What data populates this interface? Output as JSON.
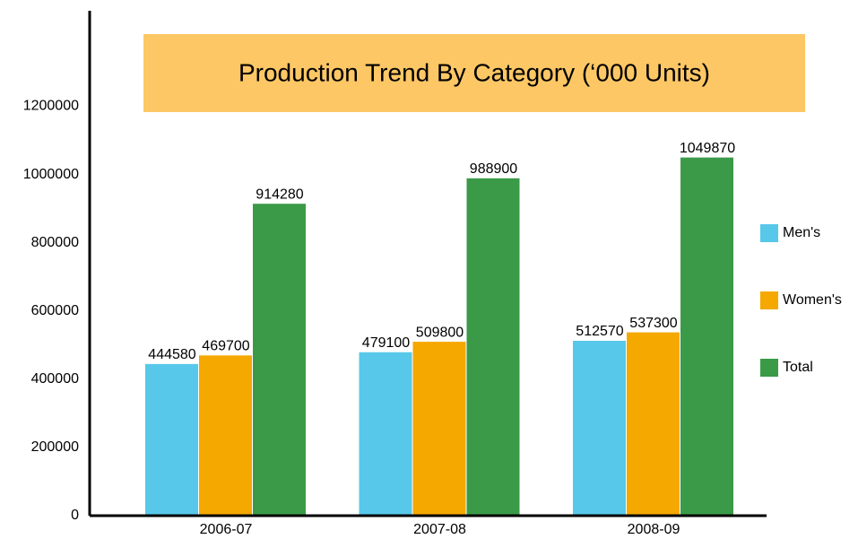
{
  "chart_data": {
    "type": "bar",
    "title": "Production Trend By Category (‘000 Units)",
    "categories": [
      "2006-07",
      "2007-08",
      "2008-09"
    ],
    "series": [
      {
        "name": "Men's",
        "color": "#57c8ea",
        "values": [
          444580,
          479100,
          512570
        ]
      },
      {
        "name": "Women's",
        "color": "#f5a800",
        "values": [
          469700,
          509800,
          537300
        ]
      },
      {
        "name": "Total",
        "color": "#3a9a48",
        "values": [
          914280,
          988900,
          1049870
        ]
      }
    ],
    "ylim": [
      0,
      1480000
    ],
    "yticks": [
      0,
      200000,
      400000,
      600000,
      800000,
      1000000,
      1200000
    ]
  }
}
